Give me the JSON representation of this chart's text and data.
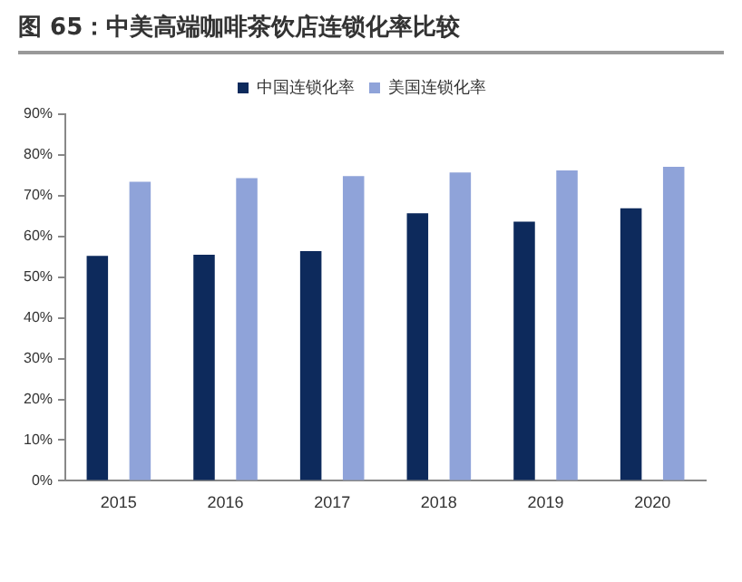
{
  "chart_data": {
    "type": "bar",
    "title": "图 65：中美高端咖啡茶饮店连锁化率比较",
    "categories": [
      "2015",
      "2016",
      "2017",
      "2018",
      "2019",
      "2020"
    ],
    "series": [
      {
        "name": "中国连锁化率",
        "color": "#0d2a5c",
        "values": [
          55.2,
          55.5,
          56.4,
          65.7,
          63.6,
          66.9
        ]
      },
      {
        "name": "美国连锁化率",
        "color": "#8fa3d9",
        "values": [
          73.4,
          74.3,
          74.8,
          75.7,
          76.2,
          77.1
        ]
      }
    ],
    "ylim": [
      0,
      90
    ],
    "yticks": [
      {
        "value": 0,
        "label": "0%"
      },
      {
        "value": 10,
        "label": "10%"
      },
      {
        "value": 20,
        "label": "20%"
      },
      {
        "value": 30,
        "label": "30%"
      },
      {
        "value": 40,
        "label": "40%"
      },
      {
        "value": 50,
        "label": "50%"
      },
      {
        "value": 60,
        "label": "60%"
      },
      {
        "value": 70,
        "label": "70%"
      },
      {
        "value": 80,
        "label": "80%"
      },
      {
        "value": 90,
        "label": "90%"
      }
    ],
    "grid": false,
    "legend": "top"
  }
}
